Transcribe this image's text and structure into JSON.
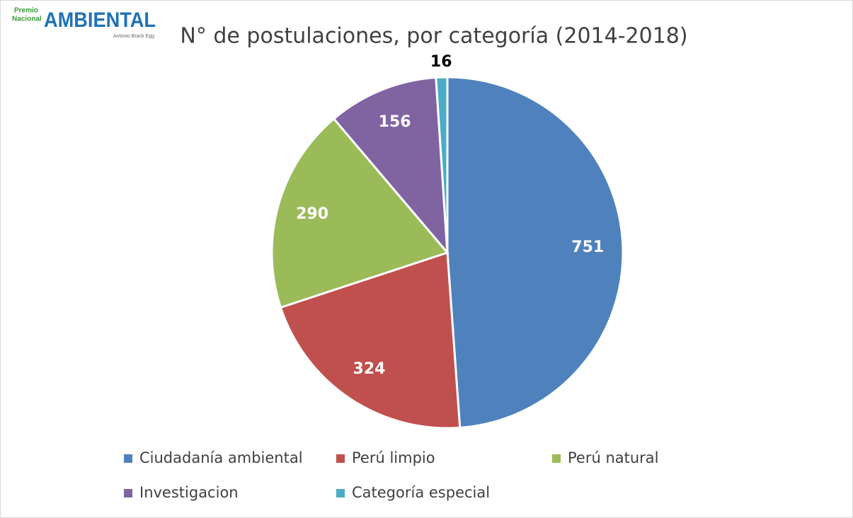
{
  "logo": {
    "line1": "Premio",
    "line2": "Nacional",
    "brand": "AMBIENTAL",
    "tagline": "Antonio Brack Egg"
  },
  "chart_data": {
    "type": "pie",
    "title": "N° de postulaciones, por categoría (2014-2018)",
    "categories": [
      "Ciudadanía ambiental",
      "Perú limpio",
      "Perú natural",
      "Investigacion",
      "Categoría especial"
    ],
    "values": [
      751,
      324,
      290,
      156,
      16
    ],
    "colors": [
      "#4f81bd",
      "#c0504d",
      "#9bbb59",
      "#8064a2",
      "#4bacc6"
    ],
    "legend": "bottom"
  }
}
